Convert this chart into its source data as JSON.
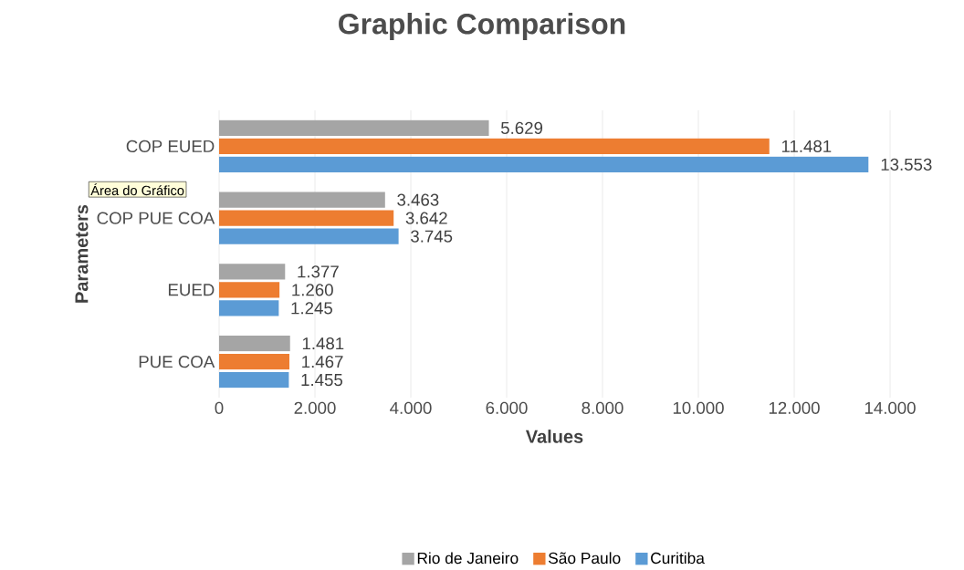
{
  "chart_data": {
    "type": "bar",
    "orientation": "horizontal",
    "title": "Graphic Comparison",
    "xlabel": "Values",
    "ylabel": "Parameters",
    "categories": [
      "COP EUED",
      "COP PUE COA",
      "EUED",
      "PUE COA"
    ],
    "series": [
      {
        "name": "Rio de Janeiro",
        "color": "#a5a5a5",
        "values": [
          5629,
          3463,
          1377,
          1481
        ],
        "value_labels": [
          "5.629",
          "3.463",
          "1.377",
          "1.481"
        ]
      },
      {
        "name": "São Paulo",
        "color": "#ed7d31",
        "values": [
          11481,
          3642,
          1260,
          1467
        ],
        "value_labels": [
          "11.481",
          "3.642",
          "1.260",
          "1.467"
        ]
      },
      {
        "name": "Curitiba",
        "color": "#5b9bd5",
        "values": [
          13553,
          3745,
          1245,
          1455
        ],
        "value_labels": [
          "13.553",
          "3.745",
          "1.245",
          "1.455"
        ]
      }
    ],
    "xlim": [
      0,
      14000
    ],
    "xticks": [
      0,
      {
        "value": 2000,
        "label": "2.000"
      },
      {
        "value": 4000,
        "label": "4.000"
      },
      {
        "value": 6000,
        "label": "6.000"
      },
      {
        "value": 8000,
        "label": "8.000"
      },
      {
        "value": 10000,
        "label": "10.000"
      },
      {
        "value": 12000,
        "label": "12.000"
      },
      {
        "value": 14000,
        "label": "14.000"
      }
    ],
    "grid": "x",
    "legend": "bottom",
    "annotations": [
      "Área do Gráfico"
    ]
  }
}
